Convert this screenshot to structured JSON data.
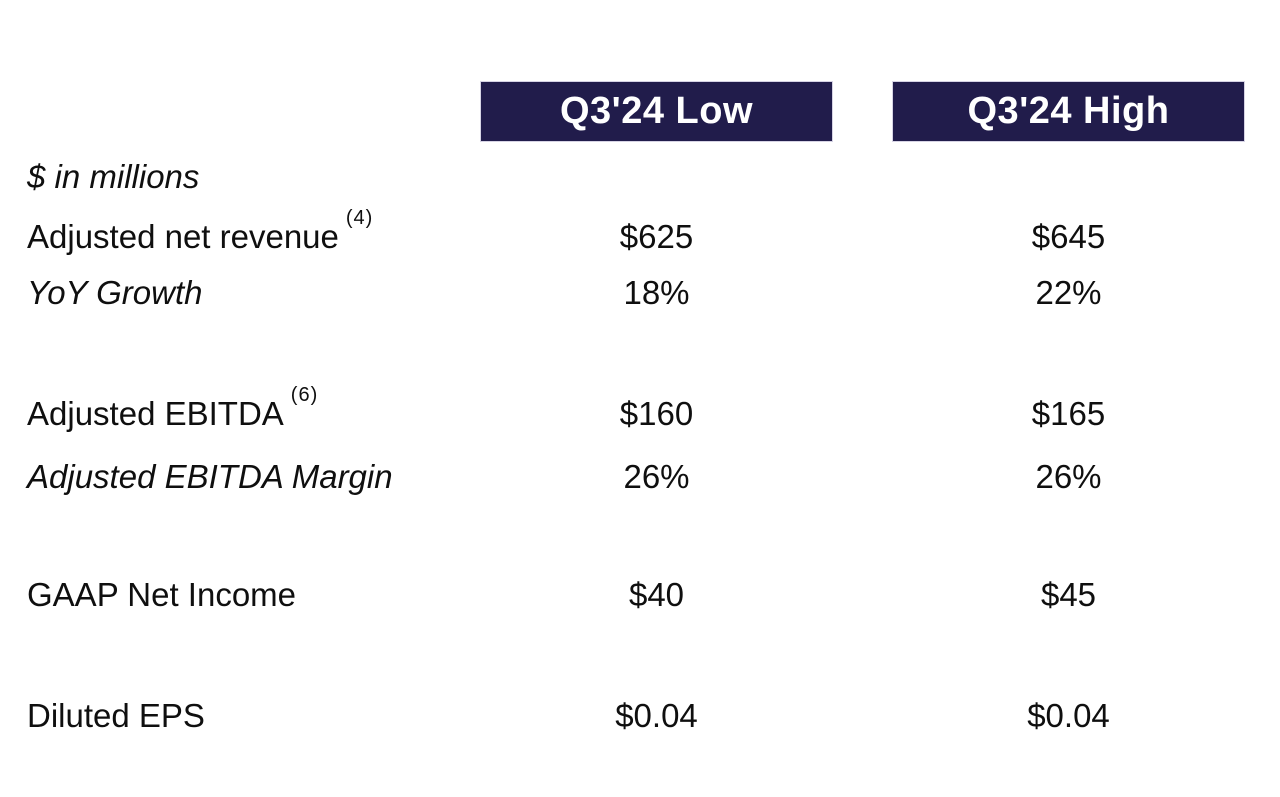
{
  "colors": {
    "header_bg": "#211c4b",
    "header_text": "#ffffff",
    "body_text": "#0f0f0f",
    "background": "#ffffff"
  },
  "table": {
    "unit_note": "$ in millions",
    "columns": [
      "Q3'24 Low",
      "Q3'24 High"
    ],
    "rows": [
      {
        "label": "Adjusted net revenue",
        "footnote": "(4)",
        "low": "$625",
        "high": "$645"
      },
      {
        "label": "YoY Growth",
        "footnote": "",
        "low": "18%",
        "high": "22%"
      },
      {
        "label": "Adjusted EBITDA",
        "footnote": "(6)",
        "low": "$160",
        "high": "$165"
      },
      {
        "label": "Adjusted EBITDA Margin",
        "footnote": "",
        "low": "26%",
        "high": "26%"
      },
      {
        "label": "GAAP Net Income",
        "footnote": "",
        "low": "$40",
        "high": "$45"
      },
      {
        "label": "Diluted EPS",
        "footnote": "",
        "low": "$0.04",
        "high": "$0.04"
      }
    ]
  },
  "chart_data": {
    "type": "table",
    "unit": "$ in millions",
    "columns": [
      "Q3'24 Low",
      "Q3'24 High"
    ],
    "rows": [
      {
        "metric": "Adjusted net revenue (4)",
        "values": [
          "$625",
          "$645"
        ]
      },
      {
        "metric": "YoY Growth",
        "values": [
          "18%",
          "22%"
        ]
      },
      {
        "metric": "Adjusted EBITDA (6)",
        "values": [
          "$160",
          "$165"
        ]
      },
      {
        "metric": "Adjusted EBITDA Margin",
        "values": [
          "26%",
          "26%"
        ]
      },
      {
        "metric": "GAAP Net Income",
        "values": [
          "$40",
          "$45"
        ]
      },
      {
        "metric": "Diluted EPS",
        "values": [
          "$0.04",
          "$0.04"
        ]
      }
    ]
  }
}
